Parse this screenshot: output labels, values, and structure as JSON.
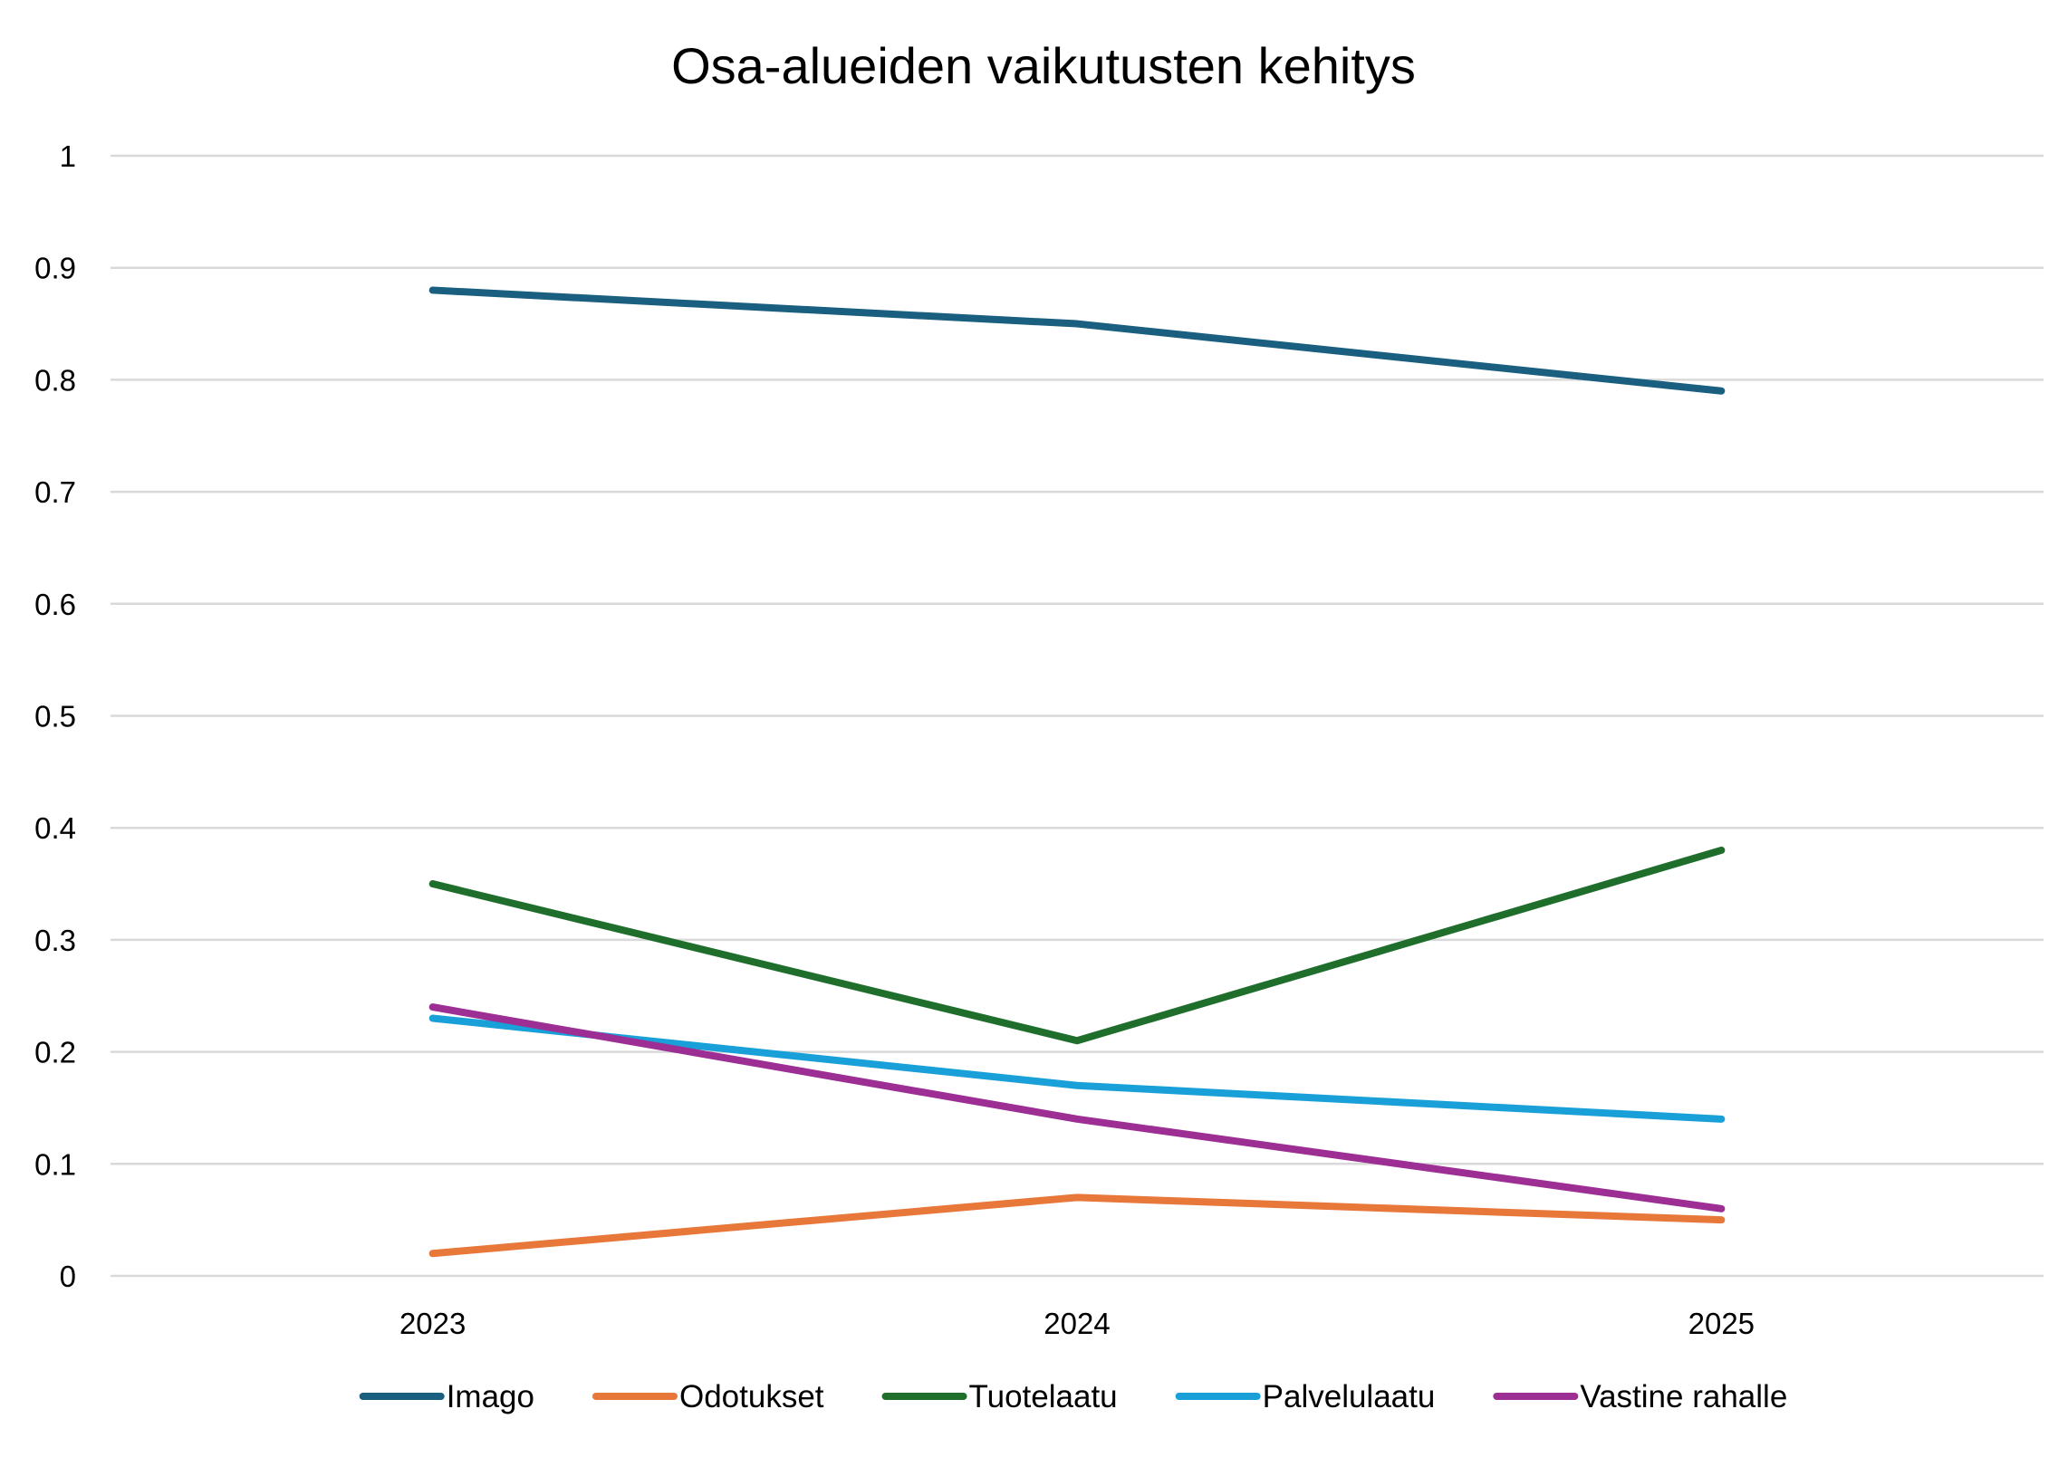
{
  "chart_data": {
    "type": "line",
    "title": "Osa-alueiden vaikutusten kehitys",
    "xlabel": "",
    "ylabel": "",
    "categories": [
      "2023",
      "2024",
      "2025"
    ],
    "ylim": [
      0,
      1
    ],
    "yticks": [
      0,
      0.1,
      0.2,
      0.3,
      0.4,
      0.5,
      0.6,
      0.7,
      0.8,
      0.9,
      1
    ],
    "ytick_labels": [
      "0",
      "0.1",
      "0.2",
      "0.3",
      "0.4",
      "0.5",
      "0.6",
      "0.7",
      "0.8",
      "0.9",
      "1"
    ],
    "grid": "horizontal",
    "legend": "bottom",
    "series": [
      {
        "name": "Imago",
        "color": "#1b5f80",
        "values": [
          0.88,
          0.85,
          0.79
        ]
      },
      {
        "name": "Odotukset",
        "color": "#e8773a",
        "values": [
          0.02,
          0.07,
          0.05
        ]
      },
      {
        "name": "Tuotelaatu",
        "color": "#1f6e2b",
        "values": [
          0.35,
          0.21,
          0.38
        ]
      },
      {
        "name": "Palvelulaatu",
        "color": "#1aa0d8",
        "values": [
          0.23,
          0.17,
          0.14
        ]
      },
      {
        "name": "Vastine rahalle",
        "color": "#9c2e94",
        "values": [
          0.24,
          0.14,
          0.06
        ]
      }
    ]
  }
}
